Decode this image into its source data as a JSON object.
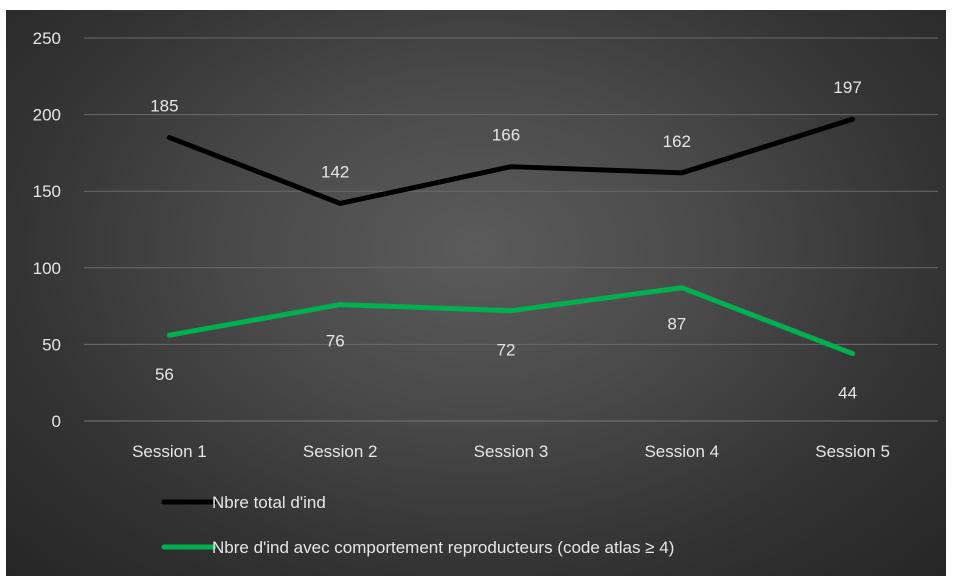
{
  "chart_data": {
    "type": "line",
    "categories": [
      "Session 1",
      "Session 2",
      "Session 3",
      "Session 4",
      "Session 5"
    ],
    "series": [
      {
        "name": "Nbre total d'ind",
        "values": [
          185,
          142,
          166,
          162,
          197
        ],
        "color": "#000000"
      },
      {
        "name": "Nbre d'ind avec comportement reproducteurs (code atlas ≥ 4)",
        "values": [
          56,
          76,
          72,
          87,
          44
        ],
        "color": "#00b050"
      }
    ],
    "ylim": [
      0,
      250
    ],
    "yticks": [
      0,
      50,
      100,
      150,
      200,
      250
    ],
    "grid": true,
    "legend_position": "bottom"
  }
}
